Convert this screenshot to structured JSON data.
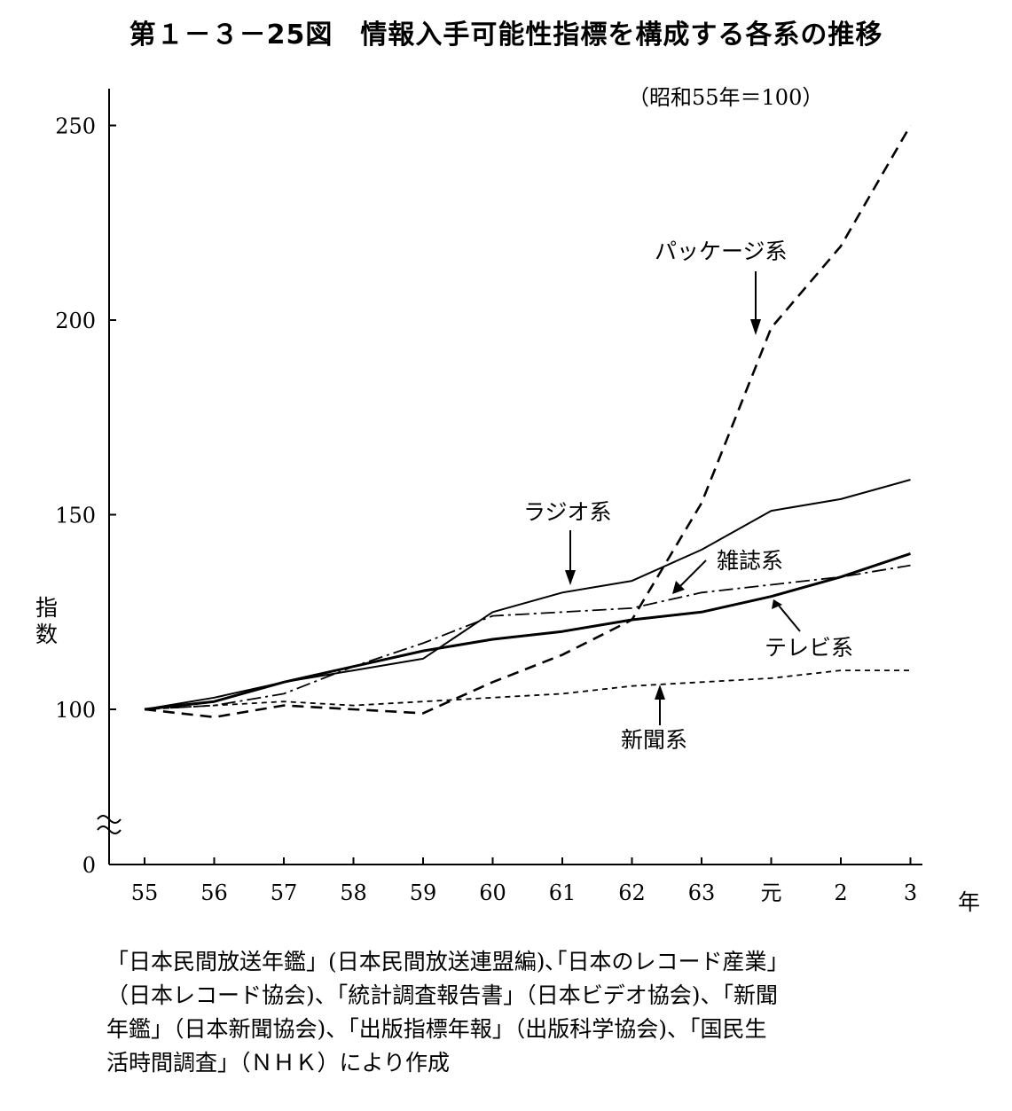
{
  "title": "第１－３－25図　情報入手可能性指標を構成する各系の推移",
  "chart_data": {
    "type": "line",
    "title": "第１－３－25図　情報入手可能性指標を構成する各系の推移",
    "note": "（昭和55年＝100）",
    "xlabel": "年",
    "ylabel": "指数",
    "categories": [
      "55",
      "56",
      "57",
      "58",
      "59",
      "60",
      "61",
      "62",
      "63",
      "元",
      "2",
      "3"
    ],
    "yticks": [
      "0",
      "100",
      "150",
      "200",
      "250"
    ],
    "axis_break": true,
    "ylim": [
      90,
      260
    ],
    "grid": false,
    "series": [
      {
        "name": "パッケージ系",
        "style": "long-dash",
        "values": [
          100,
          98,
          101,
          100,
          99,
          107,
          114,
          123,
          153,
          198,
          219,
          250
        ]
      },
      {
        "name": "ラジオ系",
        "style": "solid-thin",
        "values": [
          100,
          103,
          107,
          110,
          113,
          125,
          130,
          133,
          141,
          151,
          154,
          159
        ]
      },
      {
        "name": "雑誌系",
        "style": "dash-dot",
        "values": [
          100,
          101,
          104,
          111,
          117,
          124,
          125,
          126,
          130,
          132,
          134,
          137
        ]
      },
      {
        "name": "テレビ系",
        "style": "solid-thick",
        "values": [
          100,
          102,
          107,
          111,
          115,
          118,
          120,
          123,
          125,
          129,
          134,
          140
        ]
      },
      {
        "name": "新聞系",
        "style": "short-dash",
        "values": [
          100,
          101,
          102,
          101,
          102,
          103,
          104,
          106,
          107,
          108,
          110,
          110
        ]
      }
    ]
  },
  "source_text": "「日本民間放送年鑑」(日本民間放送連盟編)､｢日本のレコード産業」\n（日本レコード協会)、「統計調査報告書」（日本ビデオ協会)、「新聞\n年鑑」（日本新聞協会)、「出版指標年報」（出版科学協会)、「国民生\n活時間調査」（ＮＨＫ）により作成"
}
